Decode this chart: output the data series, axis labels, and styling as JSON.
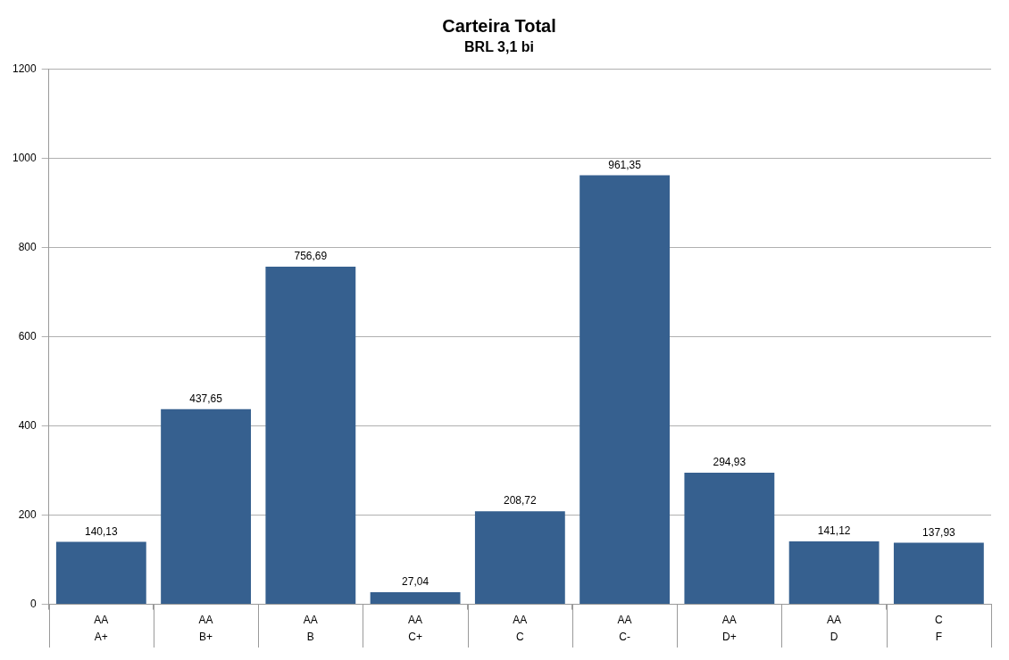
{
  "chart_data": {
    "type": "bar",
    "title": "Carteira Total",
    "subtitle": "BRL 3,1 bi",
    "categories": [
      "AA\nA+",
      "AA\nB+",
      "AA\nB",
      "AA\nC+",
      "AA\nC",
      "AA\nC-",
      "AA\nD+",
      "AA\nD",
      "C\nF"
    ],
    "values": [
      140.13,
      437.65,
      756.69,
      27.04,
      208.72,
      961.35,
      294.93,
      141.12,
      137.93
    ],
    "value_labels": [
      "140,13",
      "437,65",
      "756,69",
      "27,04",
      "208,72",
      "961,35",
      "294,93",
      "141,12",
      "137,93"
    ],
    "color": "#36608f",
    "ylim": [
      0,
      1200
    ],
    "yticks": [
      0,
      200,
      400,
      600,
      800,
      1000,
      1200
    ],
    "grid": "y",
    "legend": false
  }
}
